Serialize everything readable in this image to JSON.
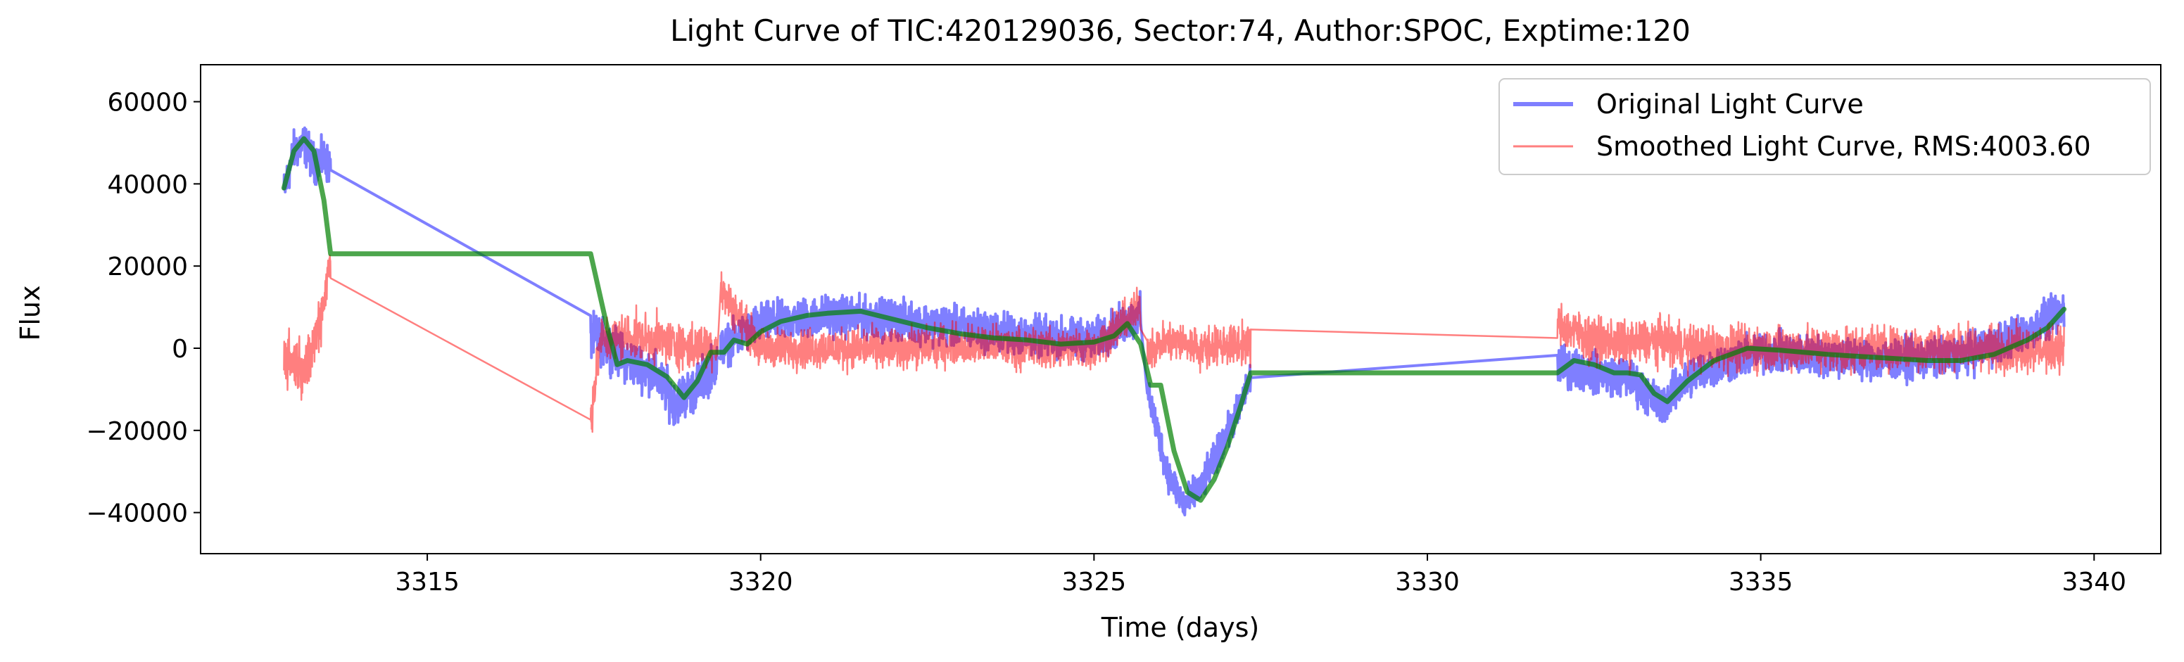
{
  "chart_data": {
    "type": "line",
    "title": "Light Curve of TIC:420129036, Sector:74, Author:SPOC, Exptime:120",
    "xlabel": "Time (days)",
    "ylabel": "Flux",
    "xlim": [
      3311.6,
      3341.0
    ],
    "ylim": [
      -50000,
      69000
    ],
    "xticks": [
      3315,
      3320,
      3325,
      3330,
      3335,
      3340
    ],
    "yticks": [
      -40000,
      -20000,
      0,
      20000,
      40000,
      60000
    ],
    "xtick_labels": [
      "3315",
      "3320",
      "3325",
      "3330",
      "3335",
      "3340"
    ],
    "ytick_labels": [
      "−40000",
      "−20000",
      "0",
      "20000",
      "40000",
      "60000"
    ],
    "grid": false,
    "legend_position": "upper right",
    "series": [
      {
        "name": "Original Light Curve",
        "color": "#0000ff",
        "opacity": 0.5,
        "style": "noisy",
        "segments": [
          {
            "t0": 3312.85,
            "t1": 3313.55,
            "x": [
              3312.85,
              3313.0,
              3313.15,
              3313.3,
              3313.45,
              3313.55
            ],
            "y": [
              38000,
              48000,
              50000,
              45000,
              46000,
              44000
            ],
            "noise": 7000
          },
          {
            "t0": 3317.45,
            "t1": 3319.35,
            "x": [
              3317.45,
              3317.7,
              3318.0,
              3318.4,
              3318.7,
              3319.0,
              3319.35
            ],
            "y": [
              3000,
              1000,
              -3000,
              -6000,
              -13000,
              -10000,
              -3000
            ],
            "noise": 8000
          },
          {
            "t0": 3319.4,
            "t1": 3325.7,
            "x": [
              3319.4,
              3320.0,
              3321.0,
              3322.0,
              3323.0,
              3324.0,
              3325.0,
              3325.7
            ],
            "y": [
              0,
              6000,
              8000,
              7000,
              5000,
              3000,
              2000,
              8000
            ],
            "noise": 7000
          },
          {
            "t0": 3325.8,
            "t1": 3327.35,
            "x": [
              3325.8,
              3326.1,
              3326.35,
              3326.6,
              3326.9,
              3327.2,
              3327.35
            ],
            "y": [
              -10000,
              -30000,
              -38000,
              -34000,
              -24000,
              -14000,
              -7000
            ],
            "noise": 6000
          },
          {
            "t0": 3331.95,
            "t1": 3339.55,
            "x": [
              3331.95,
              3332.5,
              3333.0,
              3333.5,
              3334.0,
              3335.0,
              3336.0,
              3337.0,
              3338.0,
              3339.0,
              3339.55
            ],
            "y": [
              -4000,
              -6000,
              -7000,
              -14000,
              -6000,
              -1000,
              -2000,
              -3000,
              -2000,
              4000,
              9000
            ],
            "noise": 7000
          }
        ]
      },
      {
        "name": "Smoothed Light Curve, RMS:4003.60",
        "color": "#ff0000",
        "opacity": 0.5,
        "style": "noisy-thin",
        "segments": [
          {
            "t0": 3312.85,
            "t1": 3313.55,
            "x": [
              3312.85,
              3313.0,
              3313.2,
              3313.4,
              3313.55
            ],
            "y": [
              -2000,
              -3000,
              -5000,
              8000,
              21000
            ],
            "noise": 10000
          },
          {
            "t0": 3317.45,
            "t1": 3319.35,
            "x": [
              3317.45,
              3317.6,
              3318.0,
              3318.5,
              3319.0,
              3319.35
            ],
            "y": [
              -17000,
              2000,
              3000,
              2000,
              0,
              1000
            ],
            "noise": 8000
          },
          {
            "t0": 3319.4,
            "t1": 3325.7,
            "x": [
              3319.4,
              3320.0,
              3321.0,
              3322.0,
              3323.0,
              3324.0,
              3325.0,
              3325.7
            ],
            "y": [
              14000,
              0,
              0,
              0,
              1000,
              0,
              0,
              10000
            ],
            "noise": 7000
          },
          {
            "t0": 3325.8,
            "t1": 3327.35,
            "x": [
              3325.8,
              3326.2,
              3326.6,
              3327.0,
              3327.35
            ],
            "y": [
              0,
              2000,
              0,
              1000,
              1000
            ],
            "noise": 7000
          },
          {
            "t0": 3331.95,
            "t1": 3339.55,
            "x": [
              3331.95,
              3332.5,
              3333.0,
              3333.5,
              3334.0,
              3335.0,
              3336.0,
              3337.0,
              3338.0,
              3339.0,
              3339.55
            ],
            "y": [
              6000,
              2000,
              1000,
              2000,
              0,
              0,
              0,
              0,
              0,
              0,
              0
            ],
            "noise": 8000
          }
        ]
      },
      {
        "name": "",
        "color": "#008000",
        "opacity": 0.7,
        "style": "smooth",
        "x": [
          3312.85,
          3313.0,
          3313.15,
          3313.3,
          3313.45,
          3313.55,
          3317.45,
          3317.7,
          3317.85,
          3318.0,
          3318.3,
          3318.6,
          3318.85,
          3319.05,
          3319.25,
          3319.45,
          3319.6,
          3319.8,
          3320.0,
          3320.3,
          3320.7,
          3321.0,
          3321.5,
          3322.0,
          3322.5,
          3323.0,
          3323.5,
          3324.0,
          3324.5,
          3325.0,
          3325.3,
          3325.5,
          3325.7,
          3325.85,
          3326.0,
          3326.2,
          3326.4,
          3326.6,
          3326.8,
          3327.0,
          3327.2,
          3327.35,
          3331.95,
          3332.2,
          3332.5,
          3332.8,
          3333.0,
          3333.2,
          3333.4,
          3333.6,
          3333.9,
          3334.3,
          3334.8,
          3335.3,
          3336.0,
          3336.5,
          3337.0,
          3337.5,
          3338.0,
          3338.5,
          3339.0,
          3339.3,
          3339.55
        ],
        "y": [
          39000,
          48000,
          51000,
          48000,
          36000,
          23000,
          23000,
          5000,
          -4000,
          -3000,
          -4000,
          -7000,
          -12000,
          -8000,
          -1000,
          -1000,
          2000,
          1000,
          4000,
          6500,
          8000,
          8500,
          9000,
          7000,
          5000,
          3500,
          2500,
          2000,
          1000,
          1500,
          3000,
          6000,
          1000,
          -9000,
          -9000,
          -25000,
          -35000,
          -37000,
          -32000,
          -24000,
          -14000,
          -6000,
          -6000,
          -3000,
          -4000,
          -6000,
          -6000,
          -6500,
          -11000,
          -13000,
          -8000,
          -3000,
          0,
          -500,
          -1500,
          -2000,
          -2500,
          -3000,
          -3000,
          -1500,
          2000,
          5000,
          9500
        ]
      }
    ]
  }
}
